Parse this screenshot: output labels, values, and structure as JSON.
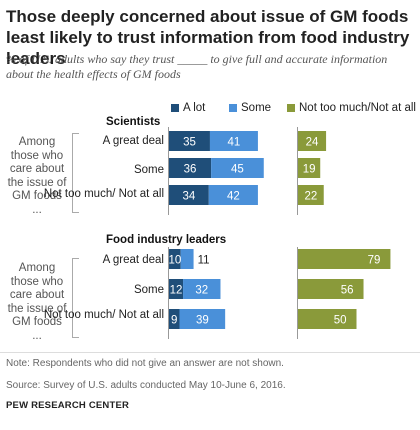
{
  "title": "Those deeply concerned about issue of GM foods least likely to trust information from food industry leaders",
  "subtitle": "% of U.S. adults who say they trust _____ to give full and accurate information about the health effects of GM foods",
  "group_label": "Among those who care about the issue of GM foods ...",
  "note": "Note: Respondents who did not give an answer are not shown.",
  "source": "Source: Survey of U.S. adults conducted May 10-June 6, 2016.",
  "brand": "PEW RESEARCH CENTER",
  "colors": {
    "a_lot": "#1f4e79",
    "some": "#4a90d9",
    "not_too_much": "#8a9a3a"
  },
  "chart_data": {
    "type": "bar",
    "stacked": true,
    "legend": [
      "A lot",
      "Some",
      "Not too much/Not at all"
    ],
    "legend_position": "top",
    "panels": [
      {
        "title": "Scientists",
        "categories": [
          "A great deal",
          "Some",
          "Not too much/ Not at all"
        ],
        "series": [
          {
            "name": "A lot",
            "values": [
              35,
              36,
              34
            ]
          },
          {
            "name": "Some",
            "values": [
              41,
              45,
              42
            ]
          },
          {
            "name": "Not too much/Not at all",
            "values": [
              24,
              19,
              22
            ]
          }
        ]
      },
      {
        "title": "Food industry leaders",
        "categories": [
          "A great deal",
          "Some",
          "Not too much/ Not at all"
        ],
        "series": [
          {
            "name": "A lot",
            "values": [
              10,
              12,
              9
            ]
          },
          {
            "name": "Some",
            "values": [
              11,
              32,
              39
            ]
          },
          {
            "name": "Not too much/Not at all",
            "values": [
              79,
              56,
              50
            ]
          }
        ]
      }
    ]
  }
}
